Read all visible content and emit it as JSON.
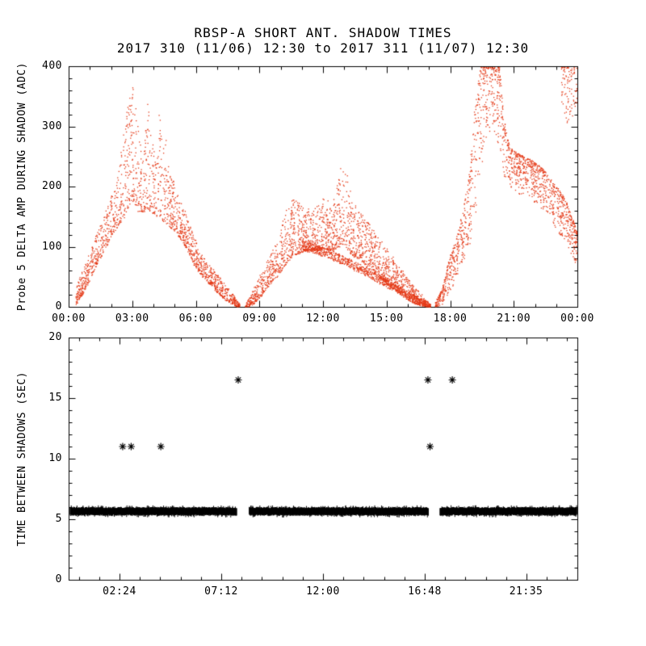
{
  "title": {
    "line1": "RBSP-A SHORT ANT. SHADOW TIMES",
    "line2": "2017 310 (11/06) 12:30 to 2017 311 (11/07) 12:30"
  },
  "colors": {
    "background": "#ffffff",
    "axis": "#000000",
    "scatter": "#e43a18",
    "band": "#000000"
  },
  "chart_data": [
    {
      "type": "scatter",
      "panel": "top",
      "ylabel": "Probe 5 DELTA AMP DURING SHADOW (ADC)",
      "xlim": [
        0,
        24
      ],
      "ylim": [
        0,
        400
      ],
      "xticks": [
        {
          "v": 0,
          "label": "00:00"
        },
        {
          "v": 3,
          "label": "03:00"
        },
        {
          "v": 6,
          "label": "06:00"
        },
        {
          "v": 9,
          "label": "09:00"
        },
        {
          "v": 12,
          "label": "12:00"
        },
        {
          "v": 15,
          "label": "15:00"
        },
        {
          "v": 18,
          "label": "18:00"
        },
        {
          "v": 21,
          "label": "21:00"
        },
        {
          "v": 24,
          "label": "00:00"
        }
      ],
      "yticks": [
        {
          "v": 0,
          "label": "0"
        },
        {
          "v": 100,
          "label": "100"
        },
        {
          "v": 200,
          "label": "200"
        },
        {
          "v": 300,
          "label": "300"
        },
        {
          "v": 400,
          "label": "400"
        }
      ],
      "x_minor_step": 1,
      "x_minor_offset": 0,
      "y_minor_step": 20,
      "grid": false,
      "point_color": "#e43a18",
      "bands": [
        {
          "name": "shadow-lobe-1",
          "bias": "low",
          "pts": 9,
          "env": [
            [
              0.35,
              5,
              35
            ],
            [
              0.7,
              25,
              70
            ],
            [
              1.1,
              55,
              105
            ],
            [
              1.5,
              85,
              140
            ],
            [
              1.9,
              110,
              175
            ],
            [
              2.3,
              135,
              220
            ],
            [
              2.6,
              150,
              290
            ],
            [
              2.85,
              170,
              365
            ],
            [
              3.05,
              175,
              370
            ],
            [
              3.25,
              160,
              300
            ],
            [
              3.5,
              158,
              260
            ],
            [
              3.7,
              165,
              345
            ],
            [
              3.9,
              158,
              280
            ],
            [
              4.1,
              152,
              250
            ],
            [
              4.3,
              150,
              335
            ],
            [
              4.5,
              140,
              300
            ],
            [
              4.7,
              135,
              230
            ],
            [
              5.0,
              125,
              205
            ],
            [
              5.3,
              112,
              175
            ],
            [
              5.6,
              95,
              150
            ],
            [
              5.9,
              70,
              115
            ],
            [
              6.2,
              55,
              90
            ],
            [
              6.6,
              40,
              70
            ],
            [
              7.0,
              25,
              55
            ],
            [
              7.4,
              12,
              38
            ],
            [
              7.8,
              3,
              18
            ],
            [
              8.05,
              0,
              6
            ]
          ]
        },
        {
          "name": "shadow-lobe-2",
          "bias": "low",
          "pts": 9,
          "env": [
            [
              8.35,
              0,
              6
            ],
            [
              8.7,
              5,
              30
            ],
            [
              9.1,
              20,
              60
            ],
            [
              9.5,
              40,
              90
            ],
            [
              9.9,
              55,
              120
            ],
            [
              10.3,
              75,
              165
            ],
            [
              10.6,
              85,
              185
            ],
            [
              10.9,
              90,
              175
            ],
            [
              11.2,
              95,
              165
            ],
            [
              11.5,
              95,
              160
            ],
            [
              11.8,
              95,
              175
            ],
            [
              12.1,
              95,
              185
            ],
            [
              12.4,
              95,
              170
            ],
            [
              12.7,
              100,
              210
            ],
            [
              12.95,
              105,
              262
            ],
            [
              13.15,
              95,
              215
            ],
            [
              13.4,
              85,
              175
            ],
            [
              13.7,
              80,
              160
            ],
            [
              14.0,
              70,
              148
            ],
            [
              14.4,
              58,
              128
            ],
            [
              14.8,
              45,
              108
            ],
            [
              15.2,
              33,
              88
            ],
            [
              15.6,
              22,
              68
            ],
            [
              16.0,
              12,
              48
            ],
            [
              16.4,
              5,
              30
            ],
            [
              16.8,
              1,
              14
            ],
            [
              17.05,
              0,
              5
            ]
          ]
        },
        {
          "name": "shadow-lobe-2-streak",
          "bias": "uniform",
          "pts": 5,
          "env": [
            [
              11.0,
              95,
              112
            ],
            [
              12.0,
              85,
              100
            ],
            [
              13.0,
              70,
              85
            ],
            [
              14.0,
              52,
              66
            ],
            [
              15.0,
              33,
              46
            ],
            [
              16.0,
              15,
              26
            ],
            [
              16.85,
              2,
              10
            ]
          ]
        },
        {
          "name": "shadow-lobe-3",
          "bias": "high",
          "pts": 9,
          "env": [
            [
              17.3,
              0,
              8
            ],
            [
              17.6,
              4,
              30
            ],
            [
              17.9,
              25,
              75
            ],
            [
              18.1,
              35,
              95
            ],
            [
              18.35,
              55,
              125
            ],
            [
              18.6,
              75,
              160
            ],
            [
              18.9,
              105,
              220
            ],
            [
              19.15,
              150,
              330
            ],
            [
              19.4,
              220,
              400
            ],
            [
              19.7,
              280,
              400
            ],
            [
              20.0,
              300,
              400
            ],
            [
              20.3,
              260,
              400
            ],
            [
              20.55,
              215,
              300
            ],
            [
              20.8,
              200,
              265
            ],
            [
              21.2,
              190,
              255
            ],
            [
              21.6,
              182,
              248
            ],
            [
              22.0,
              172,
              240
            ],
            [
              22.4,
              160,
              228
            ],
            [
              22.8,
              140,
              210
            ],
            [
              23.2,
              120,
              190
            ],
            [
              23.6,
              95,
              165
            ],
            [
              24.0,
              65,
              120
            ]
          ]
        },
        {
          "name": "shadow-lobe-3-top-wedge",
          "bias": "high",
          "pts": 6,
          "env": [
            [
              23.25,
              330,
              400
            ],
            [
              23.5,
              300,
              400
            ],
            [
              23.75,
              310,
              400
            ],
            [
              24.0,
              330,
              400
            ]
          ]
        }
      ]
    },
    {
      "type": "scatter",
      "panel": "bottom",
      "ylabel": "TIME BETWEEN SHADOWS (SEC)",
      "xlim": [
        0,
        24
      ],
      "ylim": [
        0,
        20
      ],
      "xticks": [
        {
          "v": 2.4,
          "label": "02:24"
        },
        {
          "v": 7.2,
          "label": "07:12"
        },
        {
          "v": 12.0,
          "label": "12:00"
        },
        {
          "v": 16.8,
          "label": "16:48"
        },
        {
          "v": 21.583,
          "label": "21:35"
        }
      ],
      "yticks": [
        {
          "v": 0,
          "label": "0"
        },
        {
          "v": 5,
          "label": "5"
        },
        {
          "v": 10,
          "label": "10"
        },
        {
          "v": 15,
          "label": "15"
        },
        {
          "v": 20,
          "label": "20"
        }
      ],
      "x_minor_step": 0.96,
      "x_minor_offset": 0.48,
      "y_minor_step": 1,
      "grid": false,
      "marker": "asterisk",
      "marker_color": "#000000",
      "band_value": 5.65,
      "band_segments": [
        {
          "x0": 0.05,
          "x1": 7.9,
          "y_lo": 5.35,
          "y_hi": 5.95
        },
        {
          "x0": 8.5,
          "x1": 16.95,
          "y_lo": 5.35,
          "y_hi": 5.95
        },
        {
          "x0": 17.5,
          "x1": 23.95,
          "y_lo": 5.35,
          "y_hi": 5.95
        }
      ],
      "outliers": [
        [
          2.55,
          11.0
        ],
        [
          2.95,
          11.0
        ],
        [
          4.35,
          11.0
        ],
        [
          8.0,
          16.5
        ],
        [
          16.95,
          16.5
        ],
        [
          17.05,
          11.0
        ],
        [
          18.1,
          16.5
        ]
      ]
    }
  ]
}
